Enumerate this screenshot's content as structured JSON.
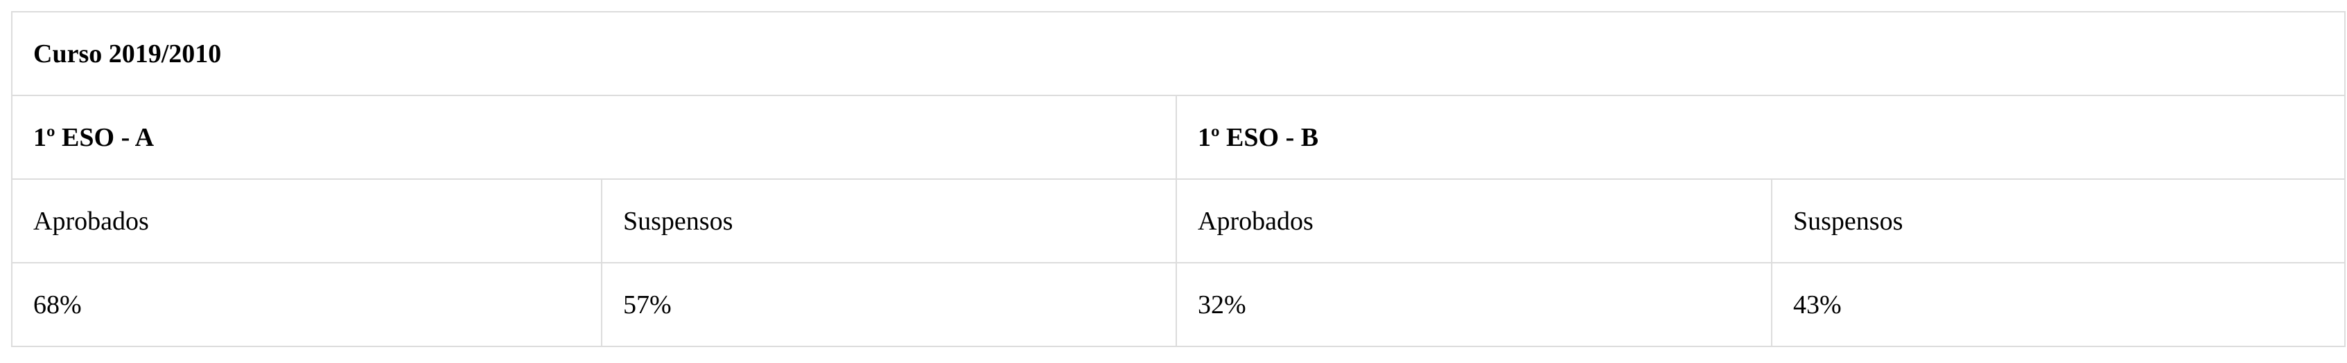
{
  "table": {
    "title": "Curso 2019/2010",
    "groups": [
      {
        "name": "1º ESO - A",
        "headers": [
          "Aprobados",
          "Suspensos"
        ],
        "values": [
          "68%",
          "57%"
        ]
      },
      {
        "name": "1º ESO - B",
        "headers": [
          "Aprobados",
          "Suspensos"
        ],
        "values": [
          "32%",
          "43%"
        ]
      }
    ]
  }
}
